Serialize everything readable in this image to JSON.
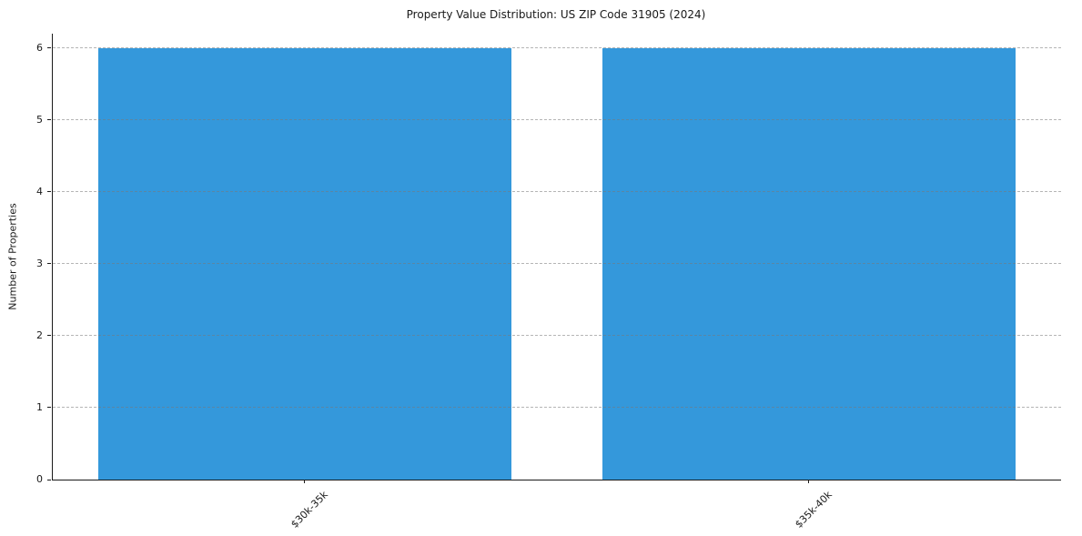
{
  "chart_data": {
    "type": "bar",
    "title": "Property Value Distribution: US ZIP Code 31905 (2024)",
    "categories": [
      "$30k-35k",
      "$35k-40k"
    ],
    "values": [
      6,
      6
    ],
    "xlabel": "",
    "ylabel": "Number of Properties",
    "ylim": [
      0,
      6.2
    ],
    "yticks": [
      0,
      1,
      2,
      3,
      4,
      5,
      6
    ],
    "bar_color": "#3498db",
    "grid": "horizontal-dashed",
    "grid_color": "#c9c9c9",
    "axis_color": "#1a1a1a",
    "background": "#ffffff",
    "legend": "none",
    "x_tick_rotation_deg": 45
  }
}
